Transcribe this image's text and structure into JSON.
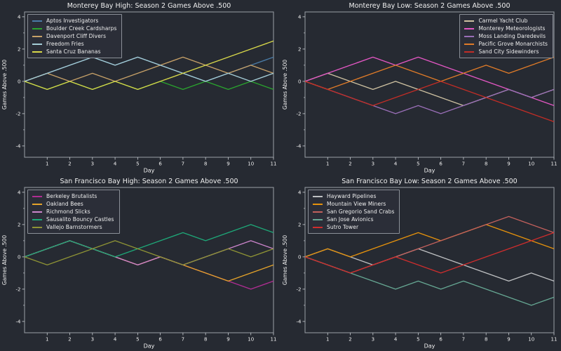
{
  "figure": {
    "background": "#262a32",
    "axes_background": "#262a32",
    "spine_color": "#9aa0a7",
    "tick_color": "#c9cdd2",
    "text_color": "#f0f0f0"
  },
  "chart_data": [
    {
      "type": "line",
      "title": "Monterey Bay High: Season 2 Games Above .500",
      "xlabel": "Day",
      "ylabel": "Games Above .500",
      "x": [
        0,
        1,
        2,
        3,
        4,
        5,
        6,
        7,
        8,
        9,
        10,
        11
      ],
      "xticks": [
        1,
        2,
        3,
        4,
        5,
        6,
        7,
        8,
        9,
        10,
        11
      ],
      "yticks": [
        -4,
        -2,
        0,
        2,
        4
      ],
      "yticks_minor": [
        -3,
        -1,
        1,
        3
      ],
      "xlim": [
        0,
        11
      ],
      "ylim": [
        -4.7,
        4.3
      ],
      "grid": false,
      "legend_position": "top-left",
      "series": [
        {
          "name": "Aptos Investigators",
          "color": "#4a7ba6",
          "values": [
            0,
            0.5,
            1,
            1.5,
            1,
            1.5,
            1,
            0.5,
            0,
            0.5,
            1,
            1.5
          ]
        },
        {
          "name": "Boulder Creek Cardsharps",
          "color": "#2aa42e",
          "values": [
            0,
            -0.5,
            0,
            -0.5,
            0,
            -0.5,
            0,
            -0.5,
            0,
            -0.5,
            0,
            -0.5
          ]
        },
        {
          "name": "Davenport Cliff Divers",
          "color": "#c7a168",
          "values": [
            0,
            0.5,
            0,
            0.5,
            0,
            0.5,
            1,
            1.5,
            1,
            0.5,
            1,
            0.5
          ]
        },
        {
          "name": "Freedom Fries",
          "color": "#a6ced8",
          "values": [
            0,
            0.5,
            1,
            1.5,
            1,
            1.5,
            1,
            0.5,
            0,
            0.5,
            0,
            0.5
          ]
        },
        {
          "name": "Santa Cruz Bananas",
          "color": "#d8d84a",
          "values": [
            0,
            -0.5,
            0,
            -0.5,
            0,
            -0.5,
            0,
            0.5,
            1,
            1.5,
            2,
            2.5
          ]
        }
      ]
    },
    {
      "type": "line",
      "title": "Monterey Bay Low: Season 2 Games Above .500",
      "xlabel": "Day",
      "ylabel": "Games Above .500",
      "x": [
        0,
        1,
        2,
        3,
        4,
        5,
        6,
        7,
        8,
        9,
        10,
        11
      ],
      "xticks": [
        1,
        2,
        3,
        4,
        5,
        6,
        7,
        8,
        9,
        10,
        11
      ],
      "yticks": [
        -4,
        -2,
        0,
        2,
        4
      ],
      "yticks_minor": [
        -3,
        -1,
        1,
        3
      ],
      "xlim": [
        0,
        11
      ],
      "ylim": [
        -4.7,
        4.3
      ],
      "grid": false,
      "legend_position": "top-right",
      "series": [
        {
          "name": "Carmel Yacht Club",
          "color": "#cfc2a2",
          "values": [
            0,
            0.5,
            0,
            -0.5,
            0,
            -0.5,
            -1,
            -1.5,
            -1,
            -0.5,
            -1,
            -0.5
          ]
        },
        {
          "name": "Monterey Meteorologists",
          "color": "#e457c4",
          "values": [
            0,
            0.5,
            1,
            1.5,
            1,
            1.5,
            1,
            0.5,
            0,
            -0.5,
            -1,
            -1.5
          ]
        },
        {
          "name": "Moss Landing Daredevils",
          "color": "#9a6fb8",
          "values": [
            0,
            -0.5,
            -1,
            -1.5,
            -2,
            -1.5,
            -2,
            -1.5,
            -1,
            -0.5,
            -1,
            -0.5
          ]
        },
        {
          "name": "Pacific Grove Monarchists",
          "color": "#e07b28",
          "values": [
            0,
            -0.5,
            0,
            0.5,
            1,
            0.5,
            0,
            0.5,
            1,
            0.5,
            1,
            1.5
          ]
        },
        {
          "name": "Sand City Sidewinders",
          "color": "#c22d26",
          "values": [
            0,
            -0.5,
            -1,
            -1.5,
            -1,
            -0.5,
            0,
            -0.5,
            -1,
            -1.5,
            -2,
            -2.5
          ]
        }
      ]
    },
    {
      "type": "line",
      "title": "San Francisco Bay High: Season 2 Games Above .500",
      "xlabel": "Day",
      "ylabel": "Games Above .500",
      "x": [
        0,
        1,
        2,
        3,
        4,
        5,
        6,
        7,
        8,
        9,
        10,
        11
      ],
      "xticks": [
        1,
        2,
        3,
        4,
        5,
        6,
        7,
        8,
        9,
        10,
        11
      ],
      "yticks": [
        -4,
        -2,
        0,
        2,
        4
      ],
      "yticks_minor": [
        -3,
        -1,
        1,
        3
      ],
      "xlim": [
        0,
        11
      ],
      "ylim": [
        -4.7,
        4.3
      ],
      "grid": false,
      "legend_position": "top-left",
      "series": [
        {
          "name": "Berkeley Brutalists",
          "color": "#b02d93",
          "values": [
            0,
            0.5,
            1,
            0.5,
            0,
            -0.5,
            0,
            -0.5,
            -1,
            -1.5,
            -2,
            -1.5
          ]
        },
        {
          "name": "Oakland Bees",
          "color": "#e5a32a",
          "values": [
            0,
            0.5,
            1,
            0.5,
            0,
            -0.5,
            0,
            -0.5,
            -1,
            -1.5,
            -1,
            -0.5
          ]
        },
        {
          "name": "Richmond Slicks",
          "color": "#cc85cc",
          "values": [
            0,
            0.5,
            1,
            0.5,
            0,
            -0.5,
            0,
            -0.5,
            0,
            0.5,
            1,
            0.5
          ]
        },
        {
          "name": "Sausalito Bouncy Castles",
          "color": "#1ea878",
          "values": [
            0,
            0.5,
            1,
            0.5,
            0,
            0.5,
            1,
            1.5,
            1,
            1.5,
            2,
            1.5
          ]
        },
        {
          "name": "Vallejo Barnstormers",
          "color": "#8e9335",
          "values": [
            0,
            -0.5,
            0,
            0.5,
            1,
            0.5,
            0,
            -0.5,
            0,
            0.5,
            0,
            0.5
          ]
        }
      ]
    },
    {
      "type": "line",
      "title": "San Francisco Bay Low: Season 2 Games Above .500",
      "xlabel": "Day",
      "ylabel": "Games Above .500",
      "x": [
        0,
        1,
        2,
        3,
        4,
        5,
        6,
        7,
        8,
        9,
        10,
        11
      ],
      "xticks": [
        1,
        2,
        3,
        4,
        5,
        6,
        7,
        8,
        9,
        10,
        11
      ],
      "yticks": [
        -4,
        -2,
        0,
        2,
        4
      ],
      "yticks_minor": [
        -3,
        -1,
        1,
        3
      ],
      "xlim": [
        0,
        11
      ],
      "ylim": [
        -4.7,
        4.3
      ],
      "grid": false,
      "legend_position": "top-left",
      "series": [
        {
          "name": "Hayward Pipelines",
          "color": "#bfc1c3",
          "values": [
            0,
            0.5,
            0,
            -0.5,
            0,
            0.5,
            0,
            -0.5,
            -1,
            -1.5,
            -1,
            -1.5
          ]
        },
        {
          "name": "Mountain View Miners",
          "color": "#e6920c",
          "values": [
            0,
            0.5,
            0,
            0.5,
            1,
            1.5,
            1,
            1.5,
            2,
            1.5,
            1,
            0.5
          ]
        },
        {
          "name": "San Gregorio Sand Crabs",
          "color": "#c2605c",
          "values": [
            0,
            -0.5,
            -1,
            -0.5,
            0,
            0.5,
            1,
            1.5,
            2,
            2.5,
            2,
            1.5
          ]
        },
        {
          "name": "San Jose Avionics",
          "color": "#66a793",
          "values": [
            0,
            -0.5,
            -1,
            -1.5,
            -2,
            -1.5,
            -2,
            -1.5,
            -2,
            -2.5,
            -3,
            -2.5
          ]
        },
        {
          "name": "Sutro Tower",
          "color": "#cf2d2d",
          "values": [
            0,
            -0.5,
            -1,
            -0.5,
            0,
            -0.5,
            -1,
            -0.5,
            0,
            0.5,
            1,
            1.5
          ]
        }
      ]
    }
  ]
}
